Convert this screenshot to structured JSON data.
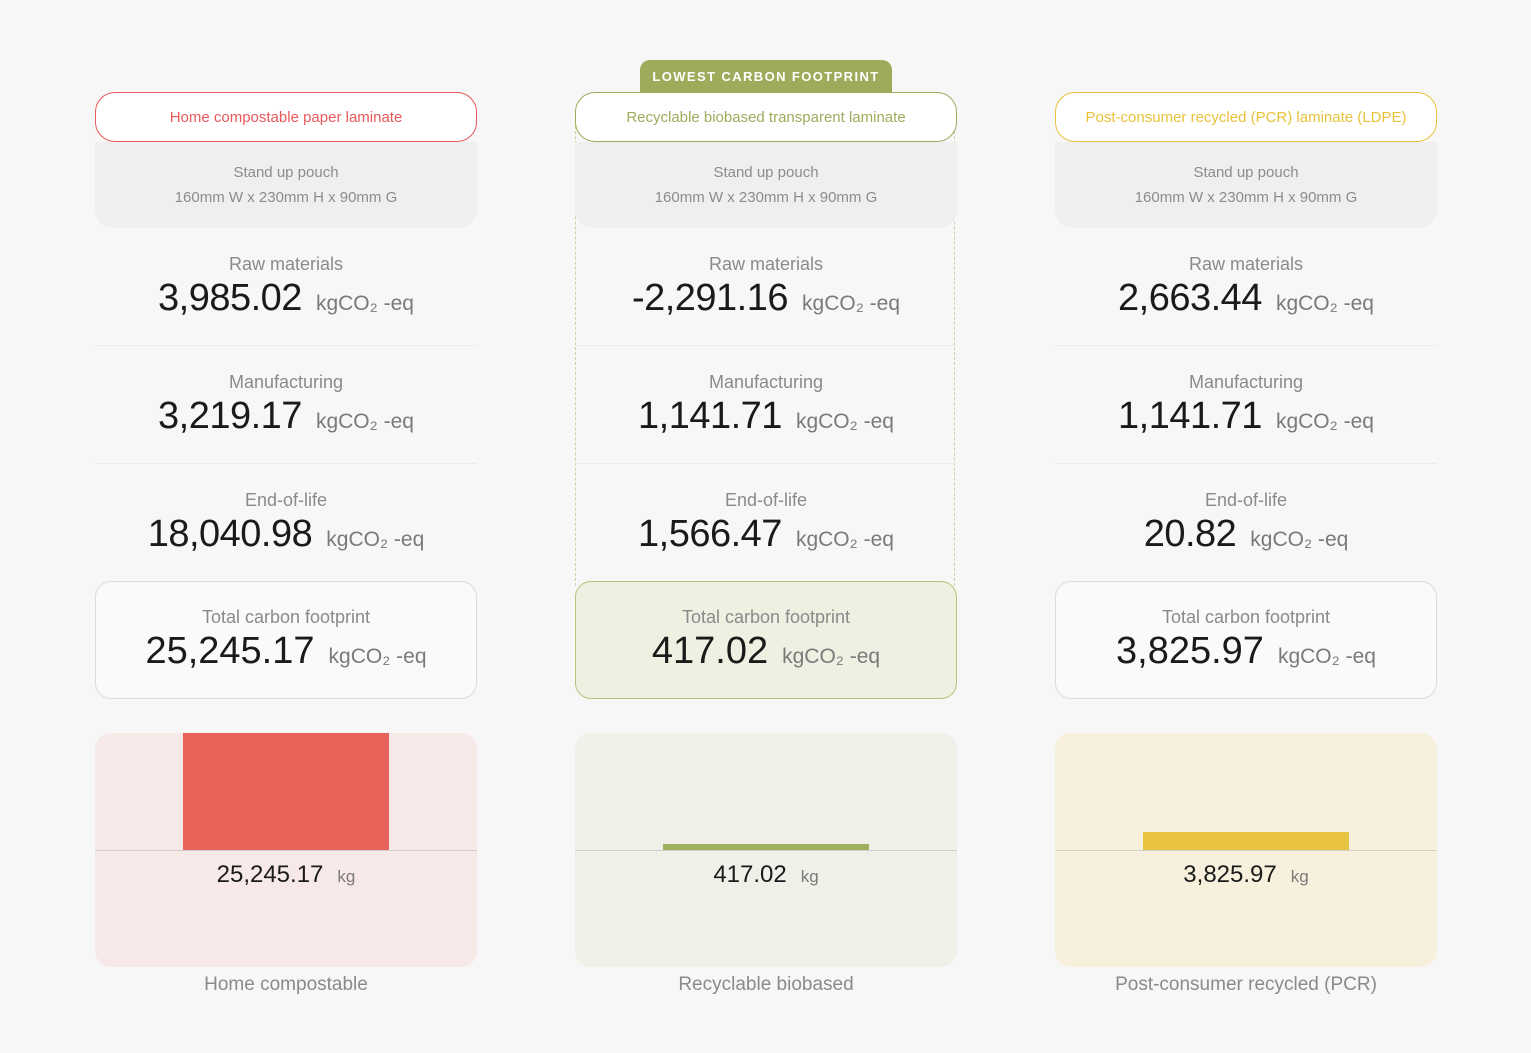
{
  "unit": "kgCO₂ -eq",
  "badge": {
    "label": "LOWEST CARBON FOOTPRINT",
    "color": "#9cac5b"
  },
  "columns": [
    {
      "title": "Home compostable paper laminate",
      "accent": "#e8595b",
      "spec_line1": "Stand up pouch",
      "spec_line2": "160mm W x 230mm H x 90mm G",
      "metrics": [
        {
          "label": "Raw materials",
          "value": "3,985.02"
        },
        {
          "label": "Manufacturing",
          "value": "3,219.17"
        },
        {
          "label": "End-of-life",
          "value": "18,040.98"
        }
      ],
      "total": {
        "label": "Total carbon footprint",
        "value": "25,245.17"
      },
      "chart": {
        "value": "25,245.17",
        "unit": "kg",
        "bar_color": "#e9625a",
        "bg_color": "#f7e9e8",
        "level": 1.0
      },
      "caption": "Home compostable"
    },
    {
      "title": "Recyclable biobased transparent laminate",
      "accent": "#9cac5b",
      "spec_line1": "Stand up pouch",
      "spec_line2": "160mm W x 230mm H x 90mm G",
      "metrics": [
        {
          "label": "Raw materials",
          "value": "-2,291.16"
        },
        {
          "label": "Manufacturing",
          "value": "1,141.71"
        },
        {
          "label": "End-of-life",
          "value": "1,566.47"
        }
      ],
      "total": {
        "label": "Total carbon footprint",
        "value": "417.02"
      },
      "chart": {
        "value": "417.02",
        "unit": "kg",
        "bar_color": "#9fb05e",
        "bg_color": "#f0f0e8",
        "level": 0.0165
      },
      "caption": "Recyclable biobased"
    },
    {
      "title": "Post-consumer recycled (PCR) laminate (LDPE)",
      "accent": "#e8c23a",
      "spec_line1": "Stand up pouch",
      "spec_line2": "160mm W x 230mm H x 90mm G",
      "metrics": [
        {
          "label": "Raw materials",
          "value": "2,663.44"
        },
        {
          "label": "Manufacturing",
          "value": "1,141.71"
        },
        {
          "label": "End-of-life",
          "value": "20.82"
        }
      ],
      "total": {
        "label": "Total carbon footprint",
        "value": "3,825.97"
      },
      "chart": {
        "value": "3,825.97",
        "unit": "kg",
        "bar_color": "#e8c441",
        "bg_color": "#f7f0dc",
        "level": 0.1516
      },
      "caption": "Post-consumer recycled (PCR)"
    }
  ]
}
